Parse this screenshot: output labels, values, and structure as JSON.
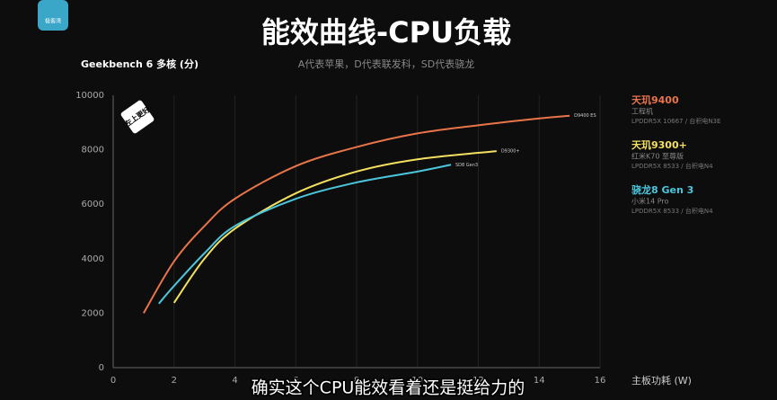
{
  "logo": "极客湾",
  "caption": "确实这个CPU能效看着还是挺给力的",
  "badge": "左上更好",
  "chart_data": {
    "type": "line",
    "title": "能效曲线-CPU负载",
    "subtitle": "A代表苹果，D代表联发科，SD代表骁龙",
    "y_label": "Geekbench 6 多核 (分)",
    "x_label": "主板功耗 (W)",
    "xlim": [
      0,
      16
    ],
    "xticks": [
      0,
      2,
      4,
      6,
      8,
      10,
      12,
      14,
      16
    ],
    "ylim": [
      0,
      10000
    ],
    "yticks": [
      0,
      2000,
      4000,
      6000,
      8000,
      10000
    ],
    "grid": true,
    "series": [
      {
        "name": "天玑9400",
        "device": "工程机",
        "spec": "LPDDR5X 10667 / 台积电N3E",
        "end_label": "D9400 ES",
        "color": "#e8744a",
        "x": [
          1,
          2,
          3,
          4,
          6,
          8,
          10,
          12,
          14,
          15
        ],
        "values": [
          2000,
          3900,
          5200,
          6200,
          7400,
          8100,
          8600,
          8900,
          9150,
          9250
        ]
      },
      {
        "name": "天玑9300+",
        "device": "红米K70 至尊版",
        "spec": "LPDDR5X 8533 / 台积电N4",
        "end_label": "D9300+",
        "color": "#f3e060",
        "x": [
          2,
          3,
          4,
          6,
          8,
          10,
          12.6
        ],
        "values": [
          2380,
          4000,
          5100,
          6400,
          7200,
          7650,
          7950
        ]
      },
      {
        "name": "骁龙8 Gen 3",
        "device": "小米14 Pro",
        "spec": "LPDDR5X 8533 / 台积电N4",
        "end_label": "SD8 Gen3",
        "color": "#4cc6dc",
        "x": [
          1.5,
          2,
          3,
          4,
          6,
          8,
          10,
          11.1
        ],
        "values": [
          2350,
          3000,
          4200,
          5200,
          6200,
          6800,
          7200,
          7450
        ]
      }
    ]
  }
}
